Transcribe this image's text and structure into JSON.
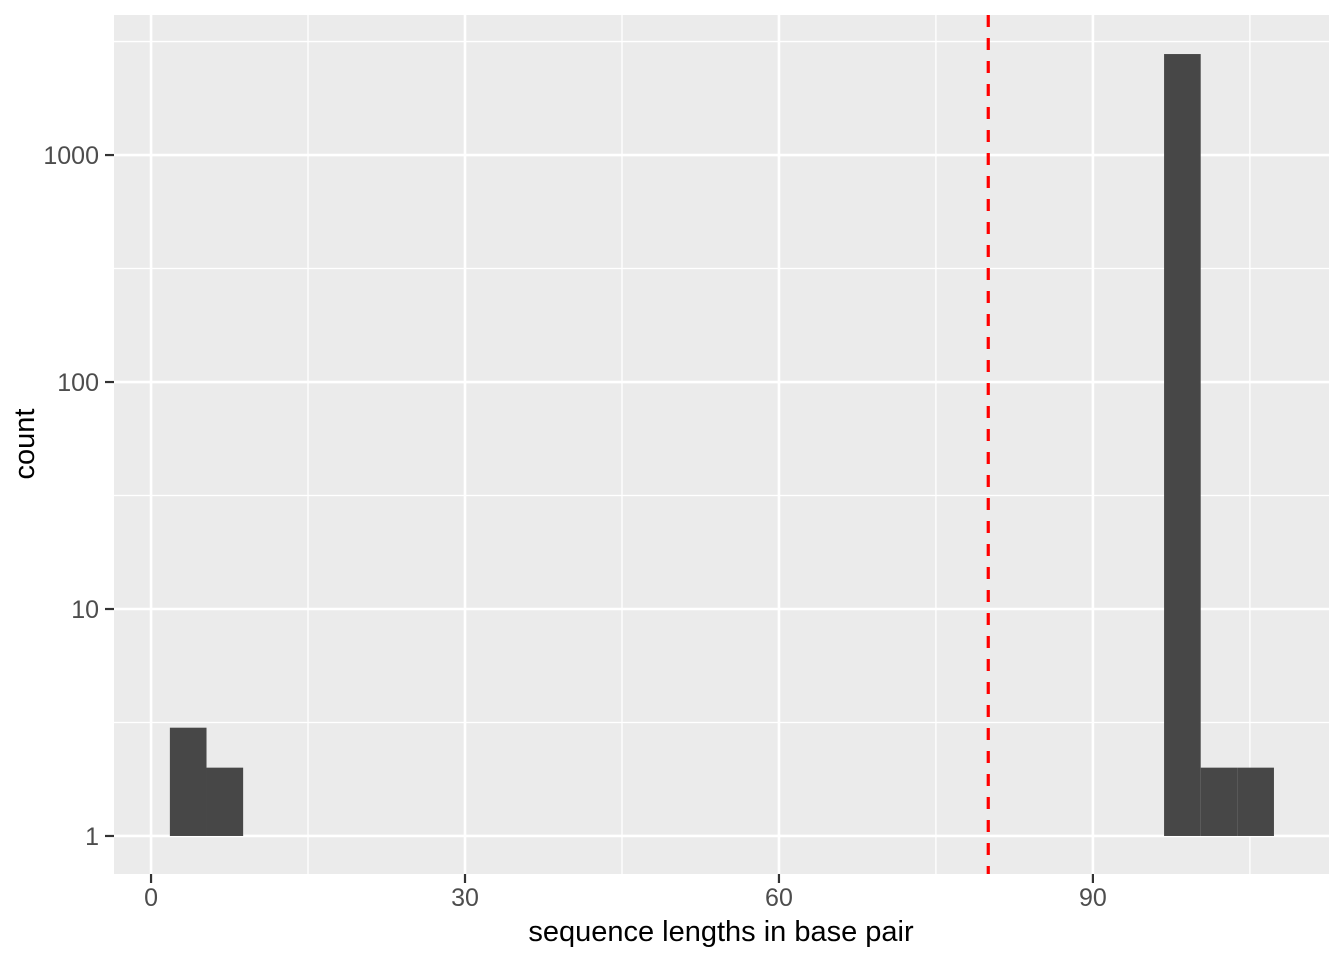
{
  "chart_data": {
    "type": "bar",
    "subtype": "histogram",
    "title": "",
    "xlabel": "sequence lengths in base pair",
    "ylabel": "count",
    "x_scale": "linear",
    "y_scale": "log10",
    "xlim": [
      -3.54,
      112.56
    ],
    "ylim": [
      0.68,
      4140
    ],
    "x_major_ticks": [
      0,
      30,
      60,
      90
    ],
    "x_minor_ticks": [
      15,
      45,
      75,
      105
    ],
    "y_major_ticks": [
      1,
      10,
      100,
      1000
    ],
    "y_major_tick_labels": [
      "1",
      "10",
      "100",
      "1000"
    ],
    "y_minor_ticks": [
      3.162,
      31.623,
      316.23,
      3162.3
    ],
    "grid": "on",
    "legend_position": "none",
    "bins": [
      {
        "x0": 1.8,
        "x1": 5.3,
        "count": 3
      },
      {
        "x0": 5.3,
        "x1": 8.8,
        "count": 2
      },
      {
        "x0": 96.8,
        "x1": 100.3,
        "count": 2786
      },
      {
        "x0": 100.3,
        "x1": 103.8,
        "count": 2
      },
      {
        "x0": 103.8,
        "x1": 107.3,
        "count": 2
      }
    ],
    "bar_baseline_value": 1,
    "vline": {
      "x": 80,
      "color": "#FF0000",
      "style": "dashed"
    },
    "colors": {
      "bar_fill": "#474747",
      "panel_bg": "#EBEBEB",
      "grid_major": "#FFFFFF",
      "grid_minor": "#FFFFFF",
      "tick_label": "#4D4D4D",
      "axis_title": "#000000",
      "tick_mark": "#333333",
      "figure_bg": "#FFFFFF"
    }
  }
}
